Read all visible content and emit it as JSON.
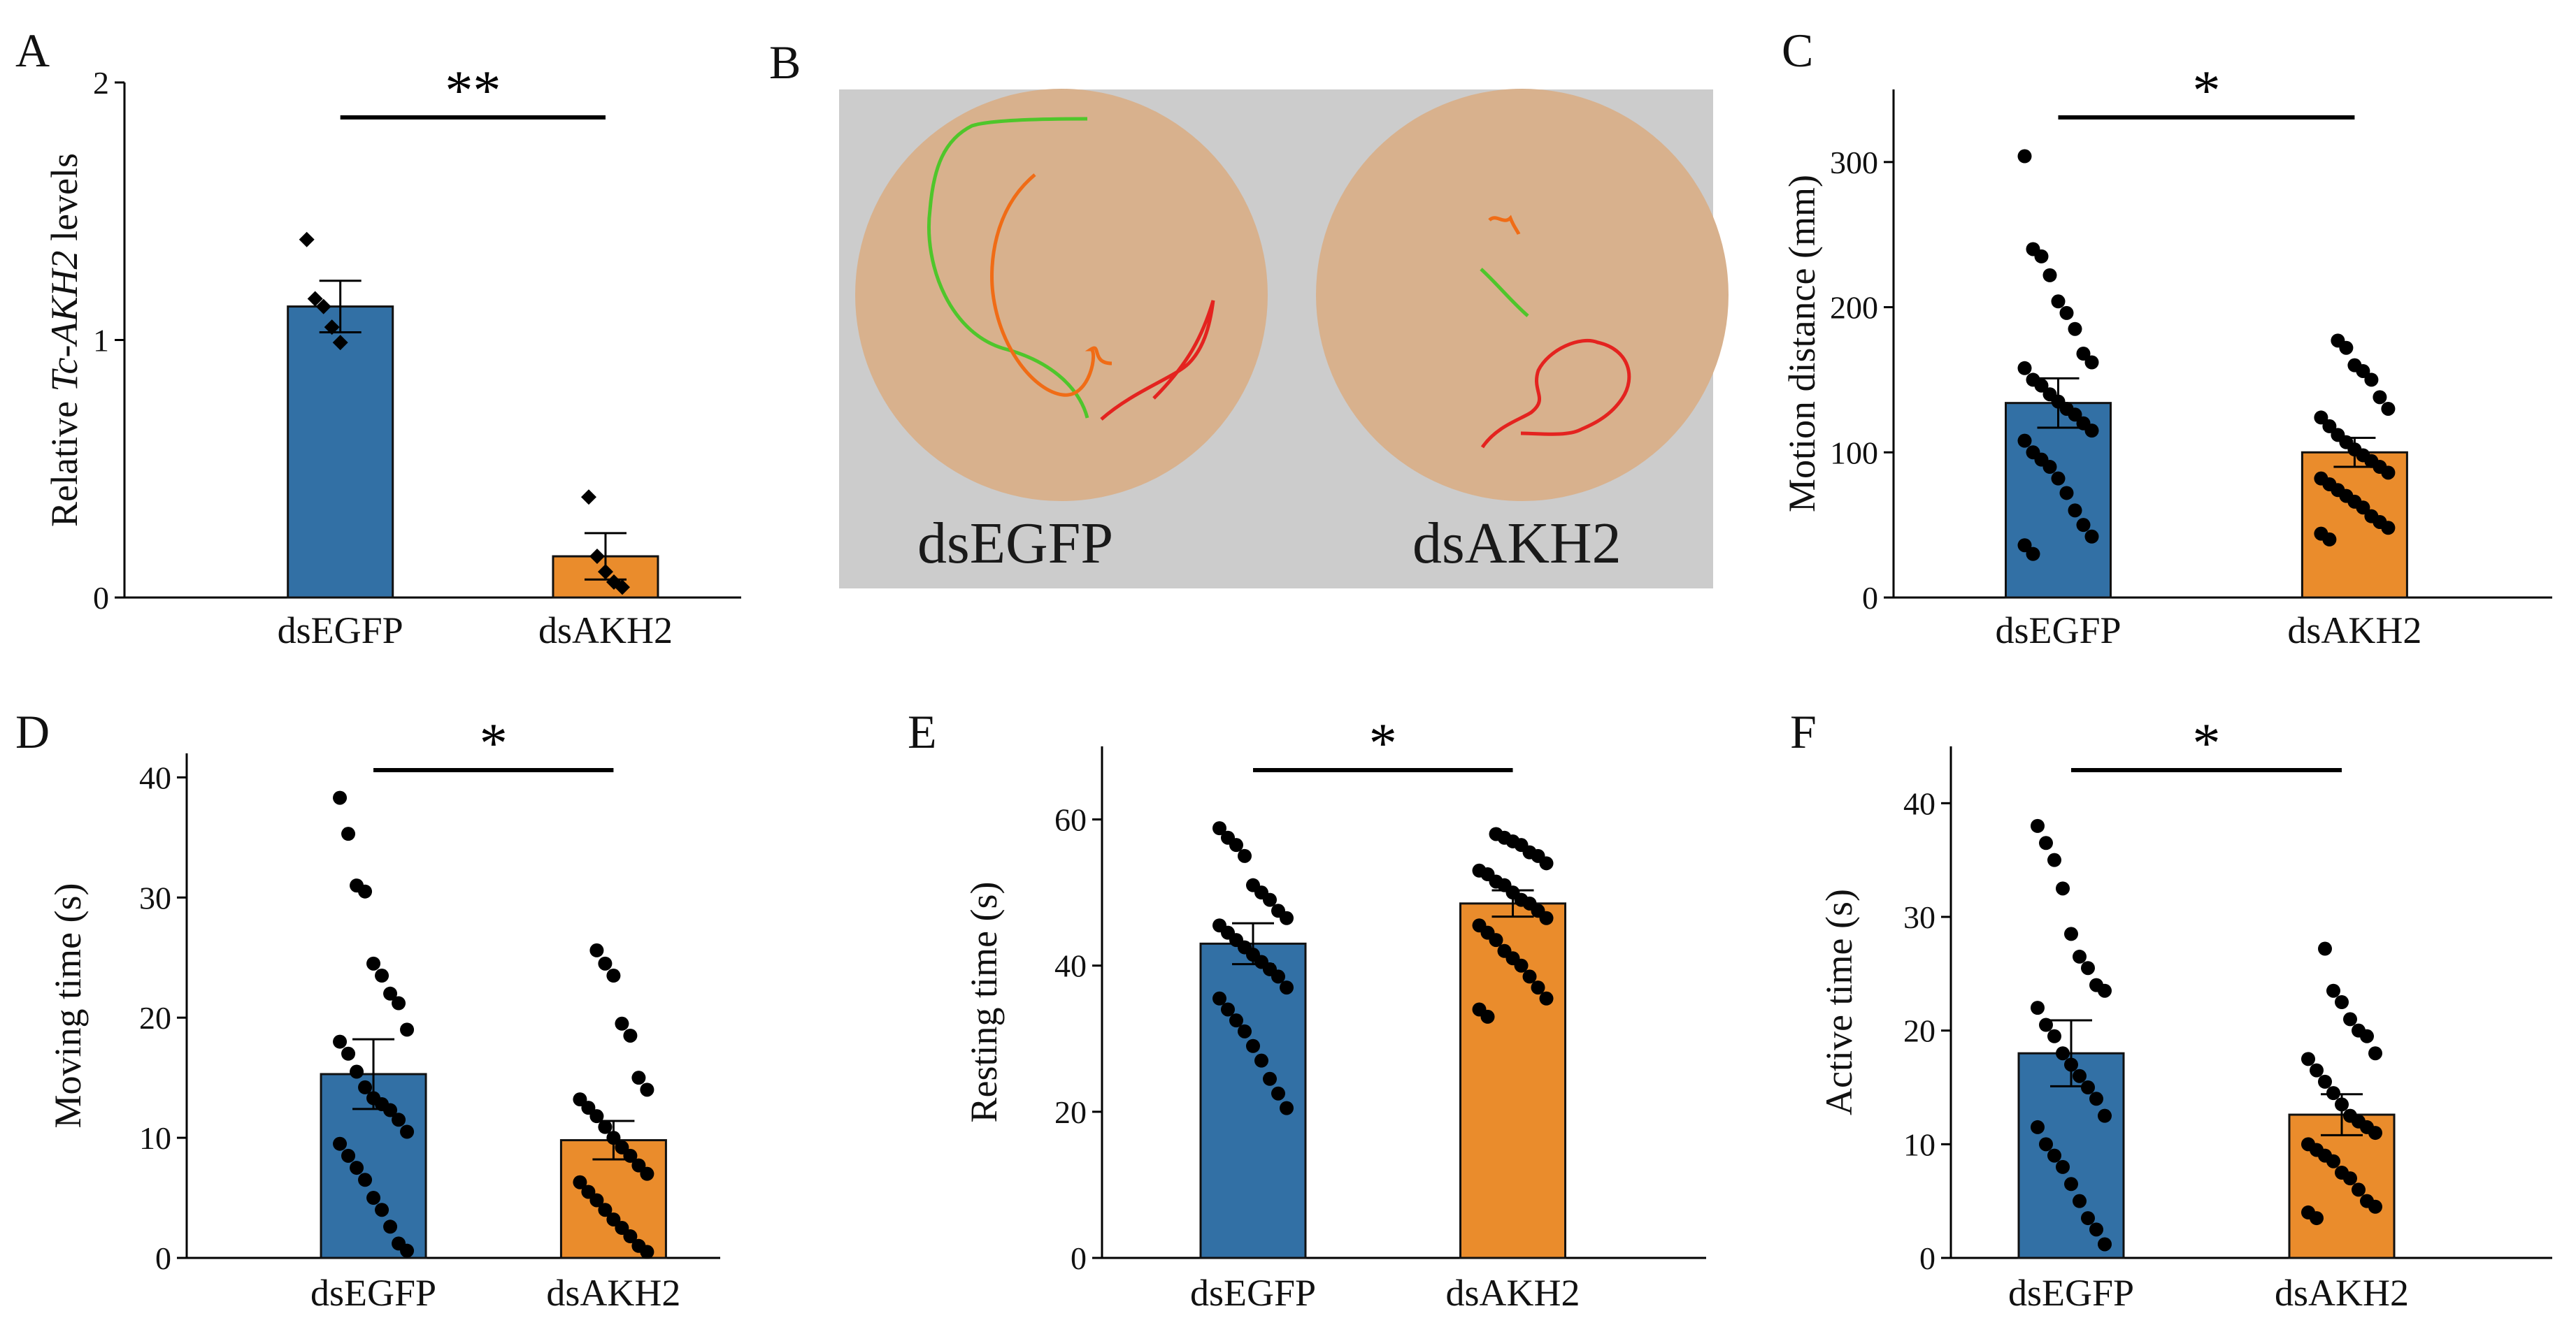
{
  "colors": {
    "dsEGFP": "#3270a5",
    "dsAKH2": "#ea8c2c",
    "arena": "#d8b18d",
    "background": "#cccccc"
  },
  "chart_data": [
    {
      "id": "A",
      "panel": "A",
      "type": "bar",
      "ylabel_prefix": "Relative ",
      "ylabel_italic": "Tc-AKH2",
      "ylabel_suffix": "  levels",
      "ylim": [
        0,
        2
      ],
      "ticks": [
        0,
        1,
        2
      ],
      "tick_labels": [
        "0",
        "1",
        "2"
      ],
      "categories": [
        "dsEGFP",
        "dsAKH2"
      ],
      "means": [
        1.13,
        0.16
      ],
      "sem": [
        0.1,
        0.09
      ],
      "points": [
        [
          1.39,
          1.16,
          1.13,
          1.05,
          0.99
        ],
        [
          0.39,
          0.16,
          0.1,
          0.06,
          0.04
        ]
      ],
      "marker": "diamond",
      "significance": "**"
    },
    {
      "id": "C",
      "panel": "C",
      "type": "bar",
      "ylabel": "Motion distance (mm)",
      "ylim": [
        0,
        350
      ],
      "ticks": [
        0,
        100,
        200,
        300
      ],
      "tick_labels": [
        "0",
        "100",
        "200",
        "300"
      ],
      "categories": [
        "dsEGFP",
        "dsAKH2"
      ],
      "means": [
        134,
        100
      ],
      "sem": [
        17,
        10
      ],
      "points": [
        [
          304,
          240,
          235,
          222,
          204,
          196,
          185,
          168,
          162,
          158,
          150,
          146,
          140,
          135,
          130,
          126,
          120,
          115,
          108,
          100,
          95,
          90,
          82,
          72,
          60,
          50,
          42,
          36,
          30
        ],
        [
          177,
          172,
          160,
          156,
          150,
          138,
          130,
          124,
          118,
          112,
          107,
          102,
          98,
          94,
          90,
          86,
          82,
          78,
          74,
          70,
          66,
          62,
          56,
          52,
          48,
          44,
          40
        ]
      ],
      "marker": "circle",
      "significance": "*"
    },
    {
      "id": "D",
      "panel": "D",
      "type": "bar",
      "ylabel": "Moving time (s)",
      "ylim": [
        0,
        42
      ],
      "ticks": [
        0,
        10,
        20,
        30,
        40
      ],
      "tick_labels": [
        "0",
        "10",
        "20",
        "30",
        "40"
      ],
      "categories": [
        "dsEGFP",
        "dsAKH2"
      ],
      "means": [
        15.3,
        9.8
      ],
      "sem": [
        2.9,
        1.6
      ],
      "points": [
        [
          38.3,
          35.3,
          31.0,
          30.5,
          24.5,
          23.5,
          22.0,
          21.2,
          19.0,
          18.0,
          17.0,
          15.5,
          14.2,
          13.3,
          12.8,
          12.3,
          11.5,
          10.5,
          9.5,
          8.5,
          7.5,
          6.5,
          5.0,
          4.0,
          2.6,
          1.2,
          0.6
        ],
        [
          25.6,
          24.5,
          23.5,
          19.5,
          18.5,
          15.0,
          14.0,
          13.2,
          12.5,
          11.8,
          10.9,
          10.0,
          9.2,
          8.5,
          7.7,
          7.0,
          6.3,
          5.5,
          4.8,
          4.0,
          3.2,
          2.5,
          1.8,
          1.0,
          0.5
        ]
      ],
      "marker": "circle",
      "significance": "*"
    },
    {
      "id": "E",
      "panel": "E",
      "type": "bar",
      "ylabel": "Resting time (s)",
      "ylim": [
        0,
        70
      ],
      "ticks": [
        0,
        20,
        40,
        60
      ],
      "tick_labels": [
        "0",
        "20",
        "40",
        "60"
      ],
      "categories": [
        "dsEGFP",
        "dsAKH2"
      ],
      "means": [
        43,
        48.5
      ],
      "sem": [
        2.8,
        1.8
      ],
      "points": [
        [
          58.8,
          57.5,
          56.5,
          55.0,
          51.0,
          50.0,
          49.0,
          47.5,
          46.5,
          45.5,
          44.5,
          43.5,
          42.5,
          41.5,
          40.5,
          39.5,
          38.5,
          37.0,
          35.5,
          34.0,
          32.5,
          31.0,
          29.0,
          27.0,
          24.5,
          22.5,
          20.5
        ],
        [
          58.0,
          57.5,
          57.0,
          56.5,
          55.5,
          55.0,
          54.0,
          53.0,
          52.5,
          51.5,
          51.0,
          50.0,
          49.0,
          48.5,
          47.5,
          46.5,
          45.5,
          44.5,
          43.5,
          42.0,
          41.0,
          40.0,
          38.5,
          37.0,
          35.5,
          34.0,
          33.0
        ]
      ],
      "marker": "circle",
      "significance": "*"
    },
    {
      "id": "F",
      "panel": "F",
      "type": "bar",
      "ylabel": "Active time (s)",
      "ylim": [
        0,
        45
      ],
      "ticks": [
        0,
        10,
        20,
        30,
        40
      ],
      "tick_labels": [
        "0",
        "10",
        "20",
        "30",
        "40"
      ],
      "categories": [
        "dsEGFP",
        "dsAKH2"
      ],
      "means": [
        18,
        12.6
      ],
      "sem": [
        2.9,
        1.8
      ],
      "points": [
        [
          38.0,
          36.5,
          35.0,
          32.5,
          28.5,
          26.5,
          25.5,
          24.0,
          23.5,
          22.0,
          20.5,
          19.5,
          18.0,
          17.0,
          16.0,
          15.0,
          14.0,
          12.5,
          11.5,
          10.0,
          9.0,
          8.0,
          6.5,
          5.0,
          3.5,
          2.5,
          1.2
        ],
        [
          27.2,
          23.5,
          22.5,
          21.0,
          20.0,
          19.5,
          18.0,
          17.5,
          16.5,
          15.5,
          14.5,
          13.5,
          12.5,
          12.0,
          11.5,
          11.0,
          10.0,
          9.5,
          9.0,
          8.5,
          7.5,
          7.0,
          6.0,
          5.0,
          4.5,
          4.0,
          3.5
        ]
      ],
      "marker": "circle",
      "significance": "*"
    }
  ],
  "panelB": {
    "label": "B",
    "arena_labels": [
      "dsEGFP",
      "dsAKH2"
    ]
  }
}
